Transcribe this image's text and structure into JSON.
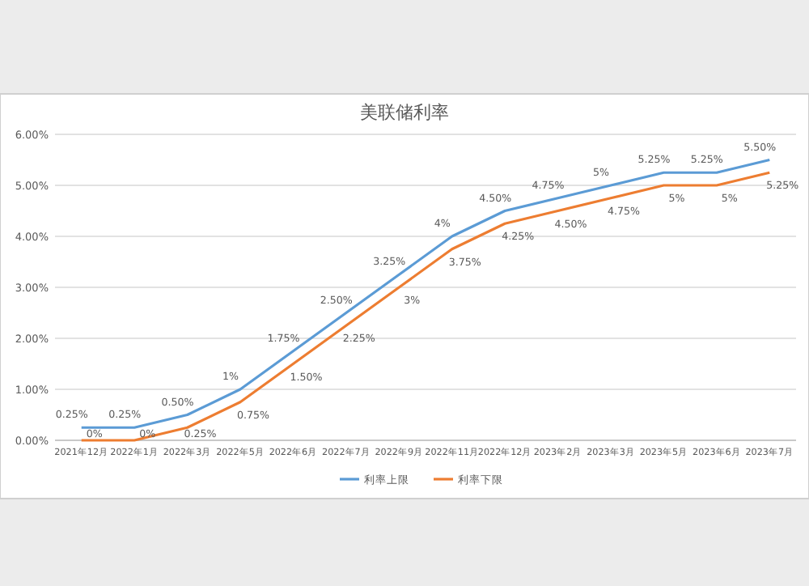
{
  "chart_data": {
    "type": "line",
    "title": "美联储利率",
    "categories": [
      "2021年12月",
      "2022年1月",
      "2022年3月",
      "2022年5月",
      "2022年6月",
      "2022年7月",
      "2022年9月",
      "2022年11月",
      "2022年12月",
      "2023年2月",
      "2023年3月",
      "2023年5月",
      "2023年6月",
      "2023年7月"
    ],
    "series": [
      {
        "name": "利率上限",
        "color": "#5b9bd5",
        "values": [
          0.25,
          0.25,
          0.5,
          1,
          1.75,
          2.5,
          3.25,
          4,
          4.5,
          4.75,
          5,
          5.25,
          5.25,
          5.5
        ],
        "value_labels": [
          "0.25%",
          "0.25%",
          "0.50%",
          "1%",
          "1.75%",
          "2.50%",
          "3.25%",
          "4%",
          "4.50%",
          "4.75%",
          "5%",
          "5.25%",
          "5.25%",
          "5.50%"
        ]
      },
      {
        "name": "利率下限",
        "color": "#ed7d31",
        "values": [
          0,
          0,
          0.25,
          0.75,
          1.5,
          2.25,
          3,
          3.75,
          4.25,
          4.5,
          4.75,
          5,
          5,
          5.25
        ],
        "value_labels": [
          "0%",
          "0%",
          "0.25%",
          "0.75%",
          "1.50%",
          "2.25%",
          "3%",
          "3.75%",
          "4.25%",
          "4.50%",
          "4.75%",
          "5%",
          "5%",
          "5.25%"
        ]
      }
    ],
    "ylim": [
      0,
      6
    ],
    "yticks": [
      {
        "value": 0,
        "label": "0.00%"
      },
      {
        "value": 1,
        "label": "1.00%"
      },
      {
        "value": 2,
        "label": "2.00%"
      },
      {
        "value": 3,
        "label": "3.00%"
      },
      {
        "value": 4,
        "label": "4.00%"
      },
      {
        "value": 5,
        "label": "5.00%"
      },
      {
        "value": 6,
        "label": "6.00%"
      }
    ],
    "grid": "y",
    "legend": "bottom",
    "marker": "none",
    "line_style": "solid"
  }
}
